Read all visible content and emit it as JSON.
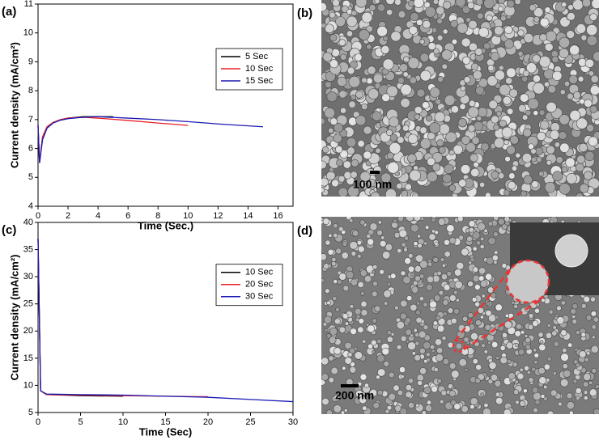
{
  "chart_data": [
    {
      "type": "line",
      "label": "(a)",
      "xlabel": "Time (Sec.)",
      "ylabel": "Current density (mA/cm²)",
      "xlim": [
        0,
        17
      ],
      "xticks": [
        0,
        2,
        4,
        6,
        8,
        10,
        12,
        14,
        16
      ],
      "ylim": [
        4,
        11
      ],
      "yticks": [
        4,
        5,
        6,
        7,
        8,
        9,
        10,
        11
      ],
      "legend": "right",
      "series": [
        {
          "name": "5 Sec",
          "color": "#000000",
          "x": [
            0,
            0.1,
            0.3,
            0.6,
            1,
            1.5,
            2,
            3,
            4,
            5
          ],
          "values": [
            6.8,
            5.5,
            6.4,
            6.75,
            6.9,
            7.0,
            7.05,
            7.1,
            7.1,
            7.1
          ]
        },
        {
          "name": "10 Sec",
          "color": "#e8202a",
          "x": [
            0,
            0.1,
            0.3,
            0.6,
            1,
            1.5,
            2,
            3,
            4,
            6,
            8,
            10
          ],
          "values": [
            6.8,
            5.5,
            6.4,
            6.75,
            6.9,
            7.0,
            7.05,
            7.08,
            7.05,
            6.97,
            6.88,
            6.8
          ]
        },
        {
          "name": "15 Sec",
          "color": "#1a1ab4",
          "x": [
            0,
            0.1,
            0.3,
            0.6,
            1,
            1.5,
            2,
            3,
            4,
            6,
            8,
            10,
            12,
            15
          ],
          "values": [
            6.8,
            5.5,
            6.3,
            6.7,
            6.88,
            6.98,
            7.03,
            7.08,
            7.1,
            7.05,
            7.0,
            6.93,
            6.85,
            6.75
          ]
        }
      ]
    },
    {
      "type": "line",
      "label": "(c)",
      "xlabel": "Time (Sec)",
      "ylabel": "Current density (mA/cm²)",
      "xlim": [
        0,
        30
      ],
      "xticks": [
        0,
        5,
        10,
        15,
        20,
        25,
        30
      ],
      "ylim": [
        5,
        40
      ],
      "yticks": [
        5,
        10,
        15,
        20,
        25,
        30,
        35,
        40
      ],
      "legend": "right",
      "series": [
        {
          "name": "10 Sec",
          "color": "#000000",
          "x": [
            0,
            0.3,
            1,
            3,
            5,
            10
          ],
          "values": [
            37,
            9,
            8.3,
            8.2,
            8.1,
            8.0
          ]
        },
        {
          "name": "20 Sec",
          "color": "#e8202a",
          "x": [
            0,
            0.3,
            1,
            5,
            10,
            15,
            20
          ],
          "values": [
            37,
            9,
            8.3,
            8.2,
            8.1,
            8.0,
            7.9
          ]
        },
        {
          "name": "30 Sec",
          "color": "#1a1ab4",
          "x": [
            0,
            0.3,
            1,
            5,
            10,
            15,
            20,
            25,
            30
          ],
          "values": [
            37,
            9,
            8.4,
            8.3,
            8.2,
            8.0,
            7.8,
            7.4,
            7.0
          ]
        }
      ]
    }
  ],
  "images": [
    {
      "label": "(b)",
      "scale_bar": "100 nm"
    },
    {
      "label": "(d)",
      "scale_bar": "200 nm"
    }
  ]
}
